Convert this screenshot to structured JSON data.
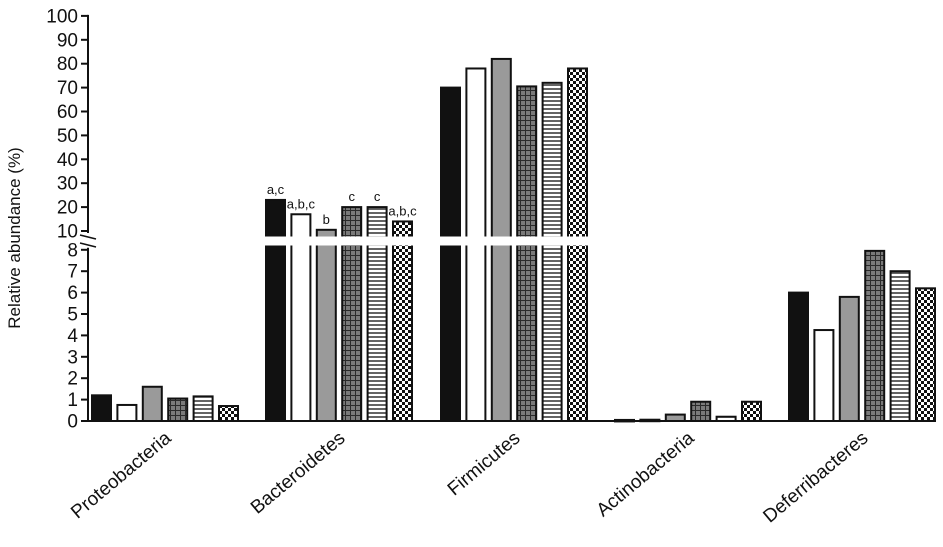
{
  "chart_data": {
    "type": "bar",
    "title": "",
    "xlabel": "",
    "ylabel": "Relative abundance (%)",
    "y_axis_break": true,
    "ylim_lower": [
      0,
      8
    ],
    "ylim_upper": [
      10,
      100
    ],
    "yticks_lower": [
      "0",
      "1",
      "2",
      "3",
      "4",
      "5",
      "6",
      "7",
      "8"
    ],
    "yticks_upper": [
      "10",
      "20",
      "30",
      "40",
      "50",
      "60",
      "70",
      "80",
      "90",
      "100"
    ],
    "categories": [
      "Proteobacteria",
      "Bacteroidetes",
      "Firmicutes",
      "Actinobacteria",
      "Deferribacteres"
    ],
    "series": [
      {
        "pattern": "solid-black",
        "values": [
          1.2,
          23,
          70,
          0.05,
          6.0
        ],
        "labels": [
          "",
          "a,c",
          "",
          "",
          ""
        ]
      },
      {
        "pattern": "white",
        "values": [
          0.75,
          17,
          78,
          0.06,
          4.25
        ],
        "labels": [
          "",
          "a,b,c",
          "",
          "",
          ""
        ]
      },
      {
        "pattern": "grey",
        "values": [
          1.6,
          10.5,
          82,
          0.3,
          5.8
        ],
        "labels": [
          "",
          "b",
          "",
          "",
          ""
        ]
      },
      {
        "pattern": "grid",
        "values": [
          1.05,
          20,
          70.5,
          0.9,
          7.95
        ],
        "labels": [
          "",
          "c",
          "",
          "",
          ""
        ]
      },
      {
        "pattern": "horizontal-lines",
        "values": [
          1.15,
          20,
          72,
          0.2,
          7.0
        ],
        "labels": [
          "",
          "c",
          "",
          "",
          ""
        ]
      },
      {
        "pattern": "checkerboard",
        "values": [
          0.7,
          14,
          78,
          0.9,
          6.2
        ],
        "labels": [
          "",
          "a,b,c",
          "",
          "",
          ""
        ]
      }
    ],
    "grid": false,
    "legend": "none"
  },
  "colors": {
    "black": "#111111",
    "grey": "#9a9a9a",
    "grid_fill": "#7a7a7a",
    "white": "#ffffff"
  }
}
